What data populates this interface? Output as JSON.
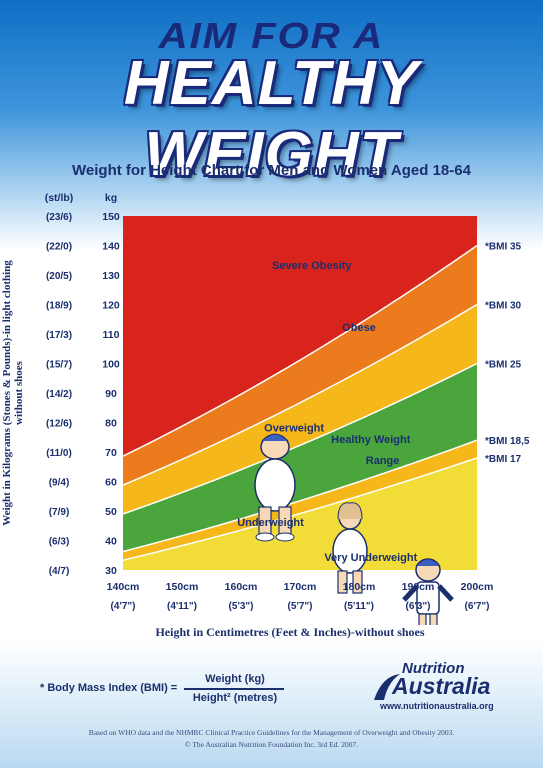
{
  "poster": {
    "headline_top": "AIM FOR A",
    "headline_main": "HEALTHY WEIGHT"
  },
  "chart_data": {
    "type": "area",
    "title": "Weight for Height Chart for Men and Women Aged 18-64",
    "ylabel": "Weight in Kilograms (Stones & Pounds)-in light clothing without shoes",
    "xlabel": "Height in Centimetres (Feet & Inches)-without shoes",
    "y_unit_stlb": "(st/lb)",
    "y_unit_kg": "kg",
    "xlim": [
      140,
      200
    ],
    "ylim": [
      30,
      150
    ],
    "x_ticks": [
      {
        "value": 140,
        "label": "140cm",
        "imperial": "(4'7\")"
      },
      {
        "value": 150,
        "label": "150cm",
        "imperial": "(4'11\")"
      },
      {
        "value": 160,
        "label": "160cm",
        "imperial": "(5'3\")"
      },
      {
        "value": 170,
        "label": "170cm",
        "imperial": "(5'7\")"
      },
      {
        "value": 180,
        "label": "180cm",
        "imperial": "(5'11\")"
      },
      {
        "value": 190,
        "label": "190cm",
        "imperial": "(6'3\")"
      },
      {
        "value": 200,
        "label": "200cm",
        "imperial": "(6'7\")"
      }
    ],
    "y_ticks": [
      {
        "value": 150,
        "label": "150",
        "stlb": "(23/6)"
      },
      {
        "value": 140,
        "label": "140",
        "stlb": "(22/0)"
      },
      {
        "value": 130,
        "label": "130",
        "stlb": "(20/5)"
      },
      {
        "value": 120,
        "label": "120",
        "stlb": "(18/9)"
      },
      {
        "value": 110,
        "label": "110",
        "stlb": "(17/3)"
      },
      {
        "value": 100,
        "label": "100",
        "stlb": "(15/7)"
      },
      {
        "value": 90,
        "label": "90",
        "stlb": "(14/2)"
      },
      {
        "value": 80,
        "label": "80",
        "stlb": "(12/6)"
      },
      {
        "value": 70,
        "label": "70",
        "stlb": "(11/0)"
      },
      {
        "value": 60,
        "label": "60",
        "stlb": "(9/4)"
      },
      {
        "value": 50,
        "label": "50",
        "stlb": "(7/9)"
      },
      {
        "value": 40,
        "label": "40",
        "stlb": "(6/3)"
      },
      {
        "value": 30,
        "label": "30",
        "stlb": "(4/7)"
      }
    ],
    "bmi_lines": [
      {
        "bmi": 17,
        "label": "*BMI 17"
      },
      {
        "bmi": 18.5,
        "label": "*BMI 18,5"
      },
      {
        "bmi": 25,
        "label": "*BMI 25"
      },
      {
        "bmi": 30,
        "label": "*BMI 30"
      },
      {
        "bmi": 35,
        "label": "*BMI 35"
      }
    ],
    "zones": [
      {
        "name": "Very Underweight",
        "bmi_min": 0,
        "bmi_max": 17,
        "color": "#f2dd38"
      },
      {
        "name": "Underweight",
        "bmi_min": 17,
        "bmi_max": 18.5,
        "color": "#f6b71a"
      },
      {
        "name": "Healthy Weight Range",
        "bmi_min": 18.5,
        "bmi_max": 25,
        "color": "#4aa63c"
      },
      {
        "name": "Overweight",
        "bmi_min": 25,
        "bmi_max": 30,
        "color": "#f6b71a"
      },
      {
        "name": "Obese",
        "bmi_min": 30,
        "bmi_max": 35,
        "color": "#ec7b1e"
      },
      {
        "name": "Severe Obesity",
        "bmi_min": 35,
        "bmi_max": 100,
        "color": "#d8241c"
      }
    ],
    "zone_labels": [
      {
        "text": "Severe Obesity",
        "x": 172,
        "y": 132
      },
      {
        "text": "Obese",
        "x": 180,
        "y": 111
      },
      {
        "text": "Overweight",
        "x": 169,
        "y": 77
      },
      {
        "text": "Healthy Weight",
        "x": 182,
        "y": 73
      },
      {
        "text": "Range",
        "x": 184,
        "y": 66
      },
      {
        "text": "Underweight",
        "x": 165,
        "y": 45
      },
      {
        "text": "Very Underweight",
        "x": 182,
        "y": 33
      }
    ]
  },
  "bmi_definition": {
    "lhs": "* Body Mass Index (BMI) =",
    "numerator": "Weight (kg)",
    "denominator": "Height² (metres)"
  },
  "logo": {
    "word1": "Nutrition",
    "word2": "Australia",
    "url": "www.nutritionaustralia.org",
    "color": "#1b2f6e"
  },
  "footer": {
    "line1": "Based on WHO data and the NHMRC Clinical Practice Guidelines for the Management of Overweight and Obesity 2003.",
    "line2": "© The Australian Nutrition Foundation Inc. 3rd Ed. 2007."
  }
}
